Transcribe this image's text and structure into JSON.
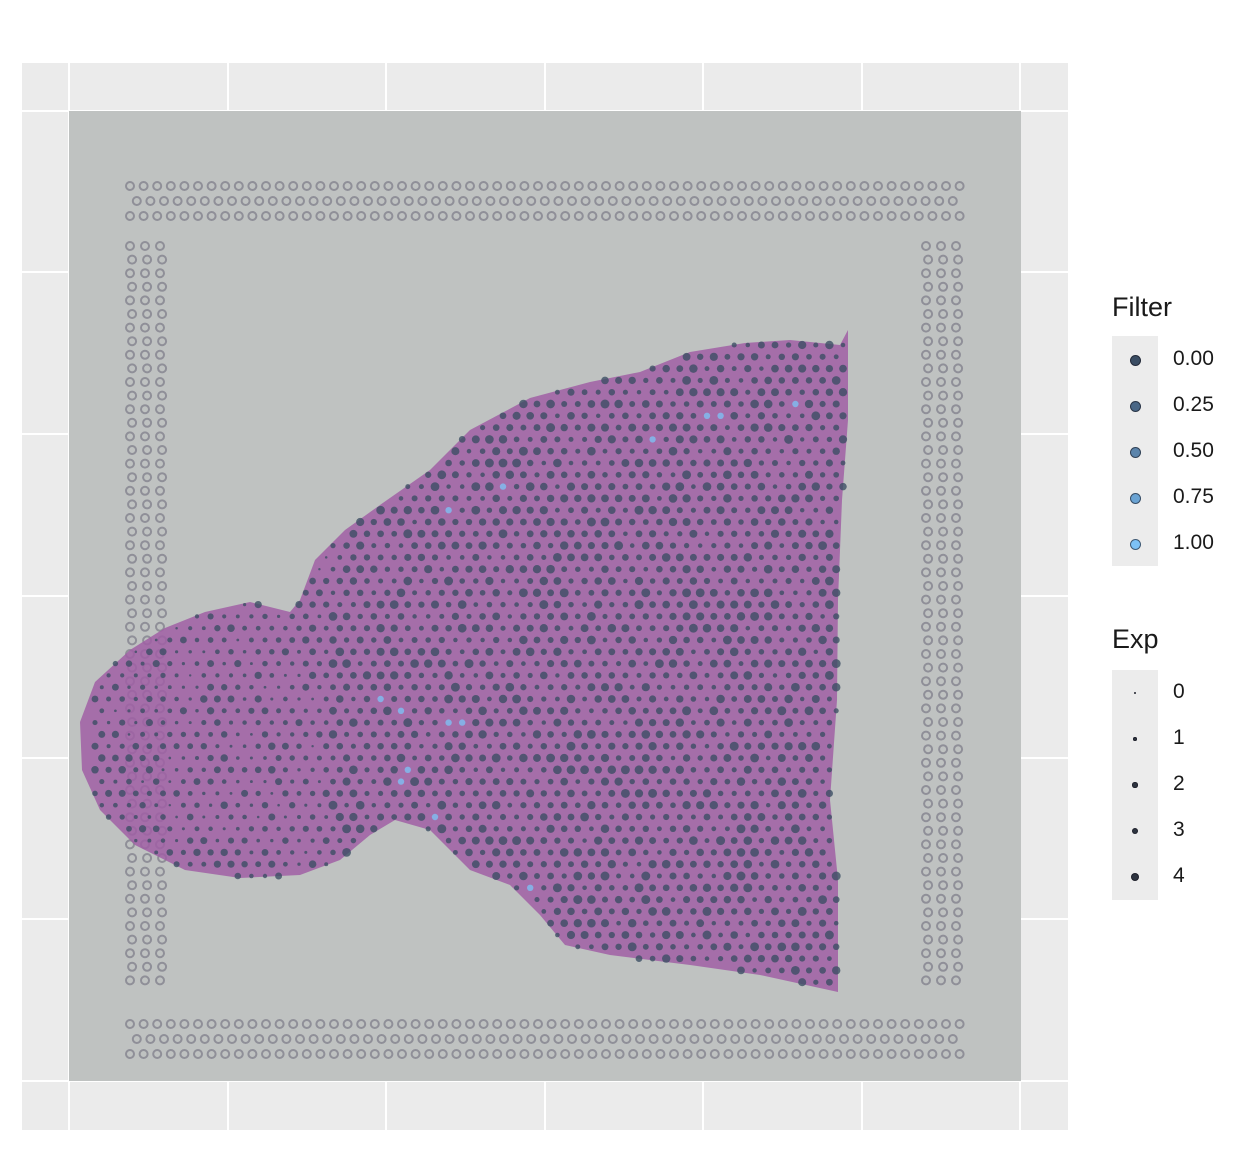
{
  "chart_data": {
    "type": "scatter",
    "description_in_picture": "",
    "title": "",
    "xlabel": "",
    "ylabel": "",
    "grid": true,
    "background_image": "tissue-section-he-stain",
    "legends": [
      {
        "title": "Filter",
        "kind": "color",
        "entries": [
          {
            "label": "0.00",
            "value": 0.0,
            "color": "#3a4d63"
          },
          {
            "label": "0.25",
            "value": 0.25,
            "color": "#4a6786"
          },
          {
            "label": "0.50",
            "value": 0.5,
            "color": "#5b84ab"
          },
          {
            "label": "0.75",
            "value": 0.75,
            "color": "#6aa3d3"
          },
          {
            "label": "1.00",
            "value": 1.0,
            "color": "#7dc1f5"
          }
        ]
      },
      {
        "title": "Exp",
        "kind": "size",
        "entries": [
          {
            "label": "0",
            "value": 0
          },
          {
            "label": "1",
            "value": 1
          },
          {
            "label": "2",
            "value": 2
          },
          {
            "label": "3",
            "value": 3
          },
          {
            "label": "4",
            "value": 4
          }
        ]
      }
    ],
    "colors": {
      "panel_bg": "#ebebeb",
      "image_bg": "#bfc2c1",
      "tissue": "#a05fa5",
      "fiducial": "#8f8f98",
      "low": "#3a4d63",
      "high": "#7dc1f5"
    }
  }
}
